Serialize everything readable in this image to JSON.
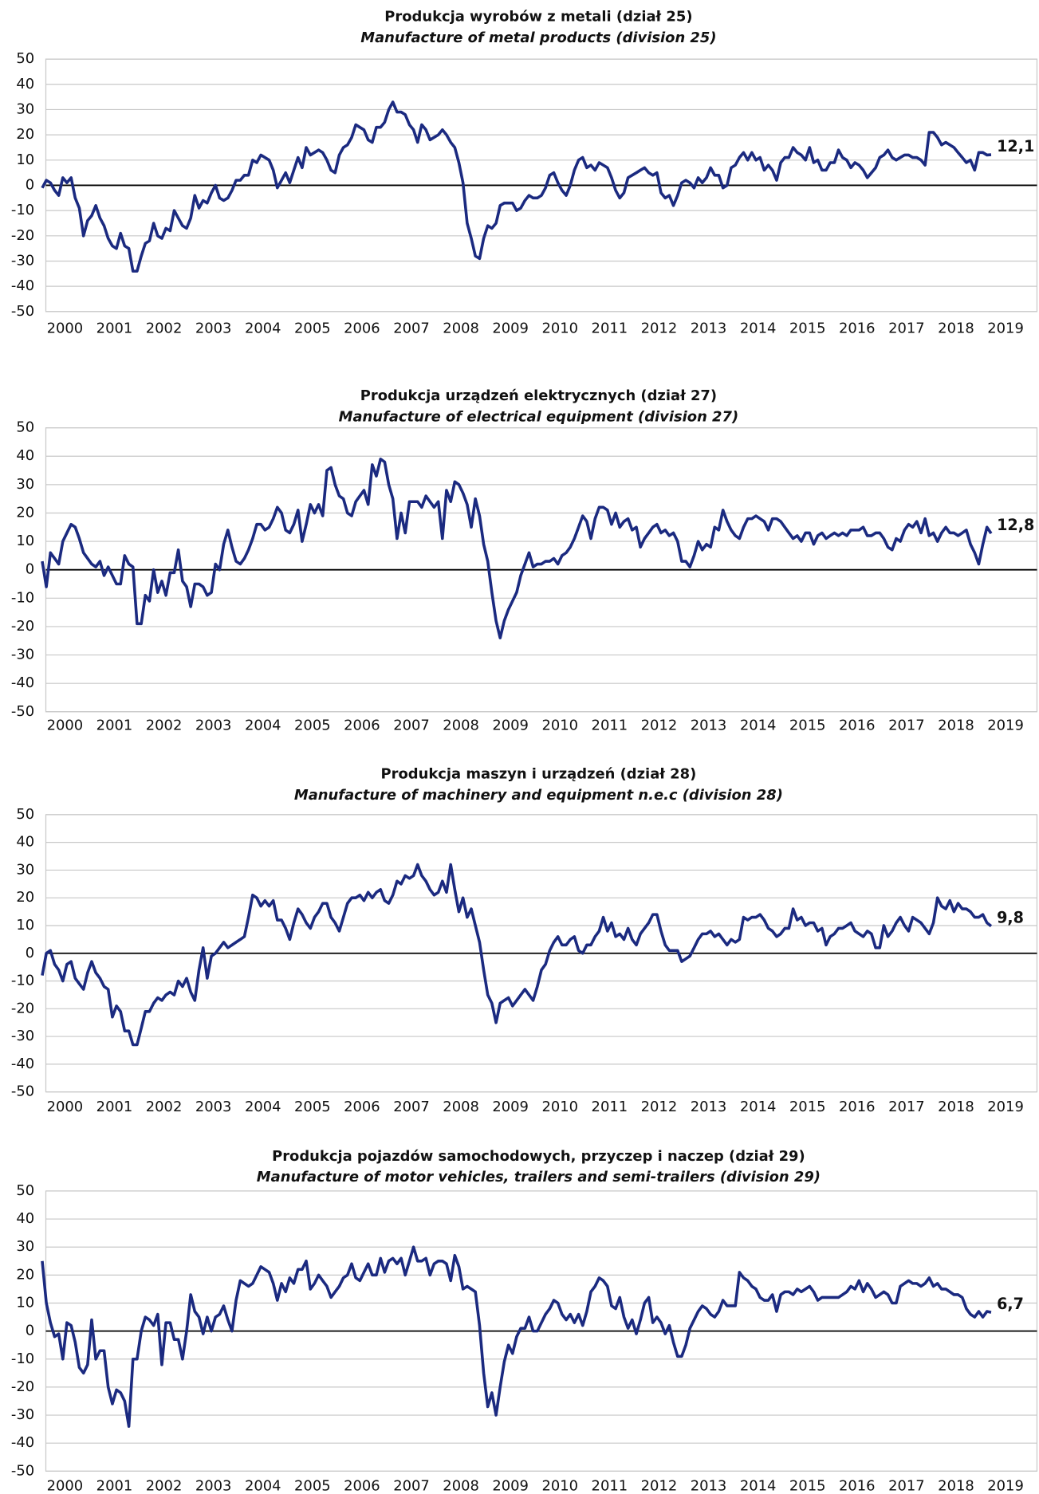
{
  "chart_data": [
    {
      "type": "line",
      "title": "Produkcja wyrobów z metali (dział 25)",
      "subtitle": "Manufacture of metal products (division 25)",
      "ylim": [
        -50,
        50
      ],
      "yticks": [
        -50,
        -40,
        -30,
        -20,
        -10,
        0,
        10,
        20,
        30,
        40,
        50
      ],
      "xticks": [
        2000,
        2001,
        2002,
        2003,
        2004,
        2005,
        2006,
        2007,
        2008,
        2009,
        2010,
        2011,
        2012,
        2013,
        2014,
        2015,
        2016,
        2017,
        2018,
        2019
      ],
      "grid": true,
      "series": [
        {
          "color": "#1b2a80",
          "end_label": "12,1",
          "values": [
            -1,
            2,
            1,
            -2,
            -4,
            3,
            1,
            3,
            -5,
            -9,
            -20,
            -14,
            -12,
            -8,
            -13,
            -16,
            -21,
            -24,
            -25,
            -19,
            -24,
            -25,
            -34,
            -34,
            -28,
            -23,
            -22,
            -15,
            -20,
            -21,
            -17,
            -18,
            -10,
            -13,
            -16,
            -17,
            -13,
            -4,
            -9,
            -6,
            -7,
            -3,
            0,
            -5,
            -6,
            -5,
            -2,
            2,
            2,
            4,
            4,
            10,
            9,
            12,
            11,
            10,
            6,
            -1,
            2,
            5,
            1,
            6,
            11,
            7,
            15,
            12,
            13,
            14,
            13,
            10,
            6,
            5,
            12,
            15,
            16,
            19,
            24,
            23,
            22,
            18,
            17,
            23,
            23,
            25,
            30,
            33,
            29,
            29,
            28,
            24,
            22,
            17,
            24,
            22,
            18,
            19,
            20,
            22,
            20,
            17,
            15,
            9,
            1,
            -15,
            -21,
            -28,
            -29,
            -21,
            -16,
            -17,
            -15,
            -8,
            -7,
            -7,
            -7,
            -10,
            -9,
            -6,
            -4,
            -5,
            -5,
            -4,
            -1,
            4,
            5,
            1,
            -2,
            -4,
            0,
            6,
            10,
            11,
            7,
            8,
            6,
            9,
            8,
            7,
            3,
            -2,
            -5,
            -3,
            3,
            4,
            5,
            6,
            7,
            5,
            4,
            5,
            -3,
            -5,
            -4,
            -8,
            -4,
            1,
            2,
            1,
            -1,
            3,
            1,
            3,
            7,
            4,
            4,
            -1,
            0,
            7,
            8,
            11,
            13,
            10,
            13,
            10,
            11,
            6,
            8,
            6,
            2,
            9,
            11,
            11,
            15,
            13,
            12,
            10,
            15,
            9,
            10,
            6,
            6,
            9,
            9,
            14,
            11,
            10,
            7,
            9,
            8,
            6,
            3,
            5,
            7,
            11,
            12,
            14,
            11,
            10,
            11,
            12,
            12,
            11,
            11,
            10,
            8,
            21,
            21,
            19,
            16,
            17,
            16,
            15,
            13,
            11,
            9,
            10,
            6,
            13,
            13,
            12,
            12.1
          ]
        }
      ]
    },
    {
      "type": "line",
      "title": "Produkcja urządzeń elektrycznych (dział 27)",
      "subtitle": "Manufacture of electrical equipment (division 27)",
      "ylim": [
        -50,
        50
      ],
      "yticks": [
        -50,
        -40,
        -30,
        -20,
        -10,
        0,
        10,
        20,
        30,
        40,
        50
      ],
      "xticks": [
        2000,
        2001,
        2002,
        2003,
        2004,
        2005,
        2006,
        2007,
        2008,
        2009,
        2010,
        2011,
        2012,
        2013,
        2014,
        2015,
        2016,
        2017,
        2018,
        2019
      ],
      "grid": true,
      "series": [
        {
          "color": "#1b2a80",
          "end_label": "12,8",
          "values": [
            3,
            -6,
            6,
            4,
            2,
            10,
            13,
            16,
            15,
            11,
            6,
            4,
            2,
            1,
            3,
            -2,
            1,
            -2,
            -5,
            -5,
            5,
            2,
            1,
            -19,
            -19,
            -9,
            -11,
            0,
            -8,
            -4,
            -9,
            -1,
            -1,
            7,
            -4,
            -6,
            -13,
            -5,
            -5,
            -6,
            -9,
            -8,
            2,
            0,
            9,
            14,
            8,
            3,
            2,
            4,
            7,
            11,
            16,
            16,
            14,
            15,
            18,
            22,
            20,
            14,
            13,
            16,
            21,
            10,
            16,
            23,
            20,
            23,
            19,
            35,
            36,
            30,
            26,
            25,
            20,
            19,
            24,
            26,
            28,
            23,
            37,
            33,
            39,
            38,
            30,
            25,
            11,
            20,
            13,
            24,
            24,
            24,
            22,
            26,
            24,
            22,
            24,
            11,
            28,
            24,
            31,
            30,
            27,
            23,
            15,
            25,
            19,
            9,
            3,
            -8,
            -18,
            -24,
            -18,
            -14,
            -11,
            -8,
            -2,
            2,
            6,
            1,
            2,
            2,
            3,
            3,
            4,
            2,
            5,
            6,
            8,
            11,
            15,
            19,
            17,
            11,
            18,
            22,
            22,
            21,
            16,
            20,
            15,
            17,
            18,
            14,
            15,
            8,
            11,
            13,
            15,
            16,
            13,
            14,
            12,
            13,
            10,
            3,
            3,
            1,
            5,
            10,
            7,
            9,
            8,
            15,
            14,
            21,
            17,
            14,
            12,
            11,
            15,
            18,
            18,
            19,
            18,
            17,
            14,
            18,
            18,
            17,
            15,
            13,
            11,
            12,
            10,
            13,
            13,
            9,
            12,
            13,
            11,
            12,
            13,
            12,
            13,
            12,
            14,
            14,
            14,
            15,
            12,
            12,
            13,
            13,
            11,
            8,
            7,
            11,
            10,
            14,
            16,
            15,
            17,
            13,
            18,
            12,
            13,
            10,
            13,
            15,
            13,
            13,
            12,
            13,
            14,
            9,
            6,
            2,
            9,
            15,
            12.8
          ]
        }
      ]
    },
    {
      "type": "line",
      "title": "Produkcja maszyn i urządzeń (dział 28)",
      "subtitle": "Manufacture of machinery and equipment n.e.c (division 28)",
      "ylim": [
        -50,
        50
      ],
      "yticks": [
        -50,
        -40,
        -30,
        -20,
        -10,
        0,
        10,
        20,
        30,
        40,
        50
      ],
      "xticks": [
        2000,
        2001,
        2002,
        2003,
        2004,
        2005,
        2006,
        2007,
        2008,
        2009,
        2010,
        2011,
        2012,
        2013,
        2014,
        2015,
        2016,
        2017,
        2018,
        2019
      ],
      "grid": true,
      "series": [
        {
          "color": "#1b2a80",
          "end_label": "9,8",
          "values": [
            -8,
            0,
            1,
            -4,
            -6,
            -10,
            -4,
            -3,
            -9,
            -11,
            -13,
            -7,
            -3,
            -7,
            -9,
            -12,
            -13,
            -23,
            -19,
            -21,
            -28,
            -28,
            -33,
            -33,
            -27,
            -21,
            -21,
            -18,
            -16,
            -17,
            -15,
            -14,
            -15,
            -10,
            -12,
            -9,
            -14,
            -17,
            -6,
            2,
            -9,
            -1,
            0,
            2,
            4,
            2,
            3,
            4,
            5,
            6,
            13,
            21,
            20,
            17,
            19,
            17,
            19,
            12,
            12,
            9,
            5,
            11,
            16,
            14,
            11,
            9,
            13,
            15,
            18,
            18,
            13,
            11,
            8,
            13,
            18,
            20,
            20,
            21,
            19,
            22,
            20,
            22,
            23,
            19,
            18,
            21,
            26,
            25,
            28,
            27,
            28,
            32,
            28,
            26,
            23,
            21,
            22,
            26,
            22,
            32,
            23,
            15,
            20,
            13,
            16,
            10,
            4,
            -6,
            -15,
            -18,
            -25,
            -18,
            -17,
            -16,
            -19,
            -17,
            -15,
            -13,
            -15,
            -17,
            -12,
            -6,
            -4,
            1,
            4,
            6,
            3,
            3,
            5,
            6,
            1,
            0,
            3,
            3,
            6,
            8,
            13,
            8,
            11,
            6,
            7,
            5,
            9,
            5,
            3,
            7,
            9,
            11,
            14,
            14,
            8,
            3,
            1,
            1,
            1,
            -3,
            -2,
            -1,
            2,
            5,
            7,
            7,
            8,
            6,
            7,
            5,
            3,
            5,
            4,
            5,
            13,
            12,
            13,
            13,
            14,
            12,
            9,
            8,
            6,
            7,
            9,
            9,
            16,
            12,
            13,
            10,
            11,
            11,
            8,
            9,
            3,
            6,
            7,
            9,
            9,
            10,
            11,
            8,
            7,
            6,
            8,
            7,
            2,
            2,
            10,
            6,
            8,
            11,
            13,
            10,
            8,
            13,
            12,
            11,
            9,
            7,
            11,
            20,
            17,
            16,
            19,
            15,
            18,
            16,
            16,
            15,
            13,
            13,
            14,
            11,
            9.8
          ]
        }
      ]
    },
    {
      "type": "line",
      "title": "Produkcja pojazdów samochodowych, przyczep i naczep (dział 29)",
      "subtitle": "Manufacture of motor vehicles, trailers and semi-trailers (division 29)",
      "ylim": [
        -50,
        50
      ],
      "yticks": [
        -50,
        -40,
        -30,
        -20,
        -10,
        0,
        10,
        20,
        30,
        40,
        50
      ],
      "xticks": [
        2000,
        2001,
        2002,
        2003,
        2004,
        2005,
        2006,
        2007,
        2008,
        2009,
        2010,
        2011,
        2012,
        2013,
        2014,
        2015,
        2016,
        2017,
        2018,
        2019
      ],
      "grid": true,
      "series": [
        {
          "color": "#1b2a80",
          "end_label": "6,7",
          "values": [
            25,
            10,
            3,
            -2,
            -1,
            -10,
            3,
            2,
            -4,
            -13,
            -15,
            -12,
            4,
            -10,
            -7,
            -7,
            -20,
            -26,
            -21,
            -22,
            -25,
            -34,
            -10,
            -10,
            0,
            5,
            4,
            2,
            6,
            -12,
            3,
            3,
            -3,
            -3,
            -10,
            0,
            13,
            7,
            5,
            -1,
            5,
            0,
            5,
            6,
            9,
            4,
            0,
            11,
            18,
            17,
            16,
            17,
            20,
            23,
            22,
            21,
            17,
            11,
            17,
            14,
            19,
            17,
            22,
            22,
            25,
            15,
            17,
            20,
            18,
            16,
            12,
            14,
            16,
            19,
            20,
            24,
            19,
            18,
            21,
            24,
            20,
            20,
            26,
            21,
            25,
            26,
            24,
            26,
            20,
            25,
            30,
            25,
            25,
            26,
            20,
            24,
            25,
            25,
            24,
            18,
            27,
            23,
            15,
            16,
            15,
            14,
            2,
            -15,
            -27,
            -22,
            -30,
            -20,
            -11,
            -5,
            -8,
            -2,
            1,
            1,
            5,
            0,
            0,
            3,
            6,
            8,
            11,
            10,
            6,
            4,
            6,
            3,
            6,
            2,
            7,
            14,
            16,
            19,
            18,
            16,
            9,
            8,
            12,
            5,
            1,
            4,
            -1,
            4,
            10,
            12,
            3,
            5,
            3,
            -1,
            2,
            -4,
            -9,
            -9,
            -5,
            1,
            4,
            7,
            9,
            8,
            6,
            5,
            7,
            11,
            9,
            9,
            9,
            21,
            19,
            18,
            16,
            15,
            12,
            11,
            11,
            13,
            7,
            13,
            14,
            14,
            13,
            15,
            14,
            15,
            16,
            14,
            11,
            12,
            12,
            12,
            12,
            12,
            13,
            14,
            16,
            15,
            18,
            14,
            17,
            15,
            12,
            13,
            14,
            13,
            10,
            10,
            16,
            17,
            18,
            17,
            17,
            16,
            17,
            19,
            16,
            17,
            15,
            15,
            14,
            13,
            13,
            12,
            8,
            6,
            5,
            7,
            5,
            7,
            6.7
          ]
        }
      ]
    }
  ]
}
